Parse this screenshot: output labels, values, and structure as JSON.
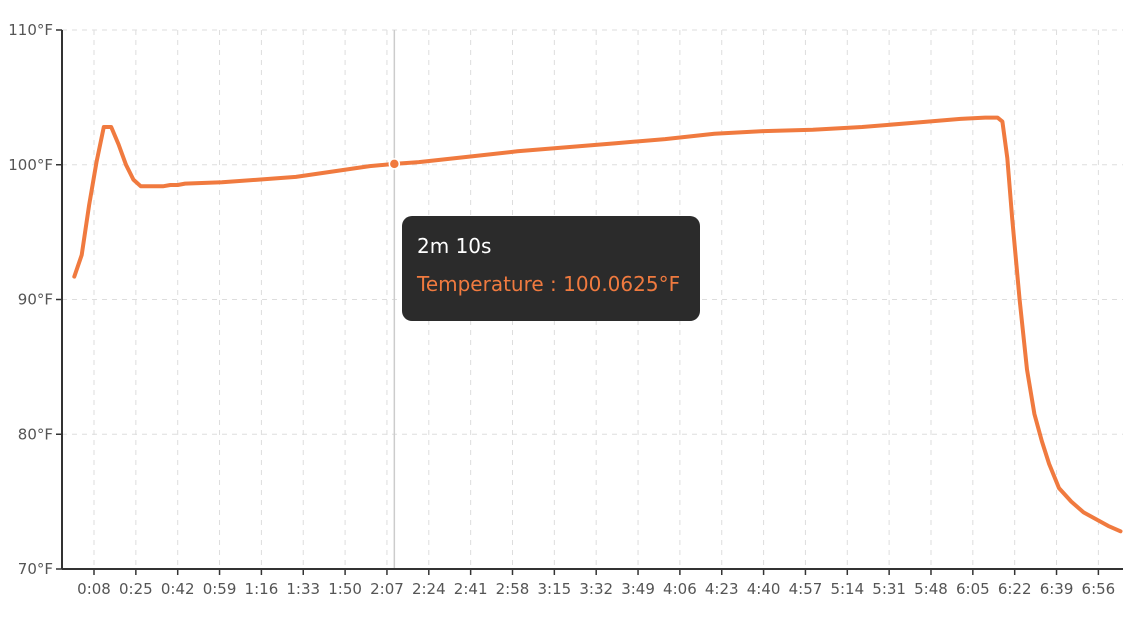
{
  "chart_data": {
    "type": "line",
    "title": "",
    "xlabel": "",
    "ylabel": "",
    "x_ticks": [
      "0:08",
      "0:25",
      "0:42",
      "0:59",
      "1:16",
      "1:33",
      "1:50",
      "2:07",
      "2:24",
      "2:41",
      "2:58",
      "3:15",
      "3:32",
      "3:49",
      "4:06",
      "4:23",
      "4:40",
      "4:57",
      "5:14",
      "5:31",
      "5:48",
      "6:05",
      "6:22",
      "6:39",
      "6:56"
    ],
    "y_ticks": [
      "70°F",
      "80°F",
      "90°F",
      "100°F",
      "110°F"
    ],
    "ylim": [
      70,
      110
    ],
    "xlim_seconds": [
      -5,
      426
    ],
    "grid": true,
    "series": [
      {
        "name": "Temperature",
        "color": "#f07a3f",
        "x": [
          0,
          3,
          6,
          9,
          12,
          15,
          18,
          21,
          24,
          27,
          30,
          33,
          36,
          39,
          42,
          45,
          60,
          75,
          90,
          105,
          120,
          130,
          140,
          160,
          180,
          200,
          220,
          240,
          260,
          280,
          300,
          320,
          340,
          360,
          370,
          375,
          377,
          379,
          381,
          384,
          387,
          390,
          393,
          396,
          400,
          405,
          410,
          415,
          420,
          425
        ],
        "values": [
          91.7,
          93.3,
          97.0,
          100.2,
          102.8,
          102.8,
          101.5,
          100.0,
          98.9,
          98.4,
          98.4,
          98.4,
          98.4,
          98.5,
          98.5,
          98.6,
          98.7,
          98.9,
          99.1,
          99.5,
          99.9,
          100.06,
          100.2,
          100.6,
          101.0,
          101.3,
          101.6,
          101.9,
          102.3,
          102.5,
          102.6,
          102.8,
          103.1,
          103.4,
          103.5,
          103.5,
          103.2,
          100.5,
          96.0,
          90.0,
          84.8,
          81.5,
          79.5,
          77.8,
          76.0,
          75.0,
          74.2,
          73.7,
          73.2,
          72.8
        ]
      }
    ],
    "highlight": {
      "x": 130,
      "y": 100.0625
    }
  },
  "tooltip": {
    "title": "2m 10s",
    "label": "Temperature",
    "value": "100.0625°F",
    "text": "Temperature : 100.0625°F"
  },
  "colors": {
    "line": "#f07a3f",
    "axis": "#333333",
    "grid": "#dddddd",
    "cursor": "#cccccc",
    "tooltip_bg": "#2b2b2b"
  }
}
